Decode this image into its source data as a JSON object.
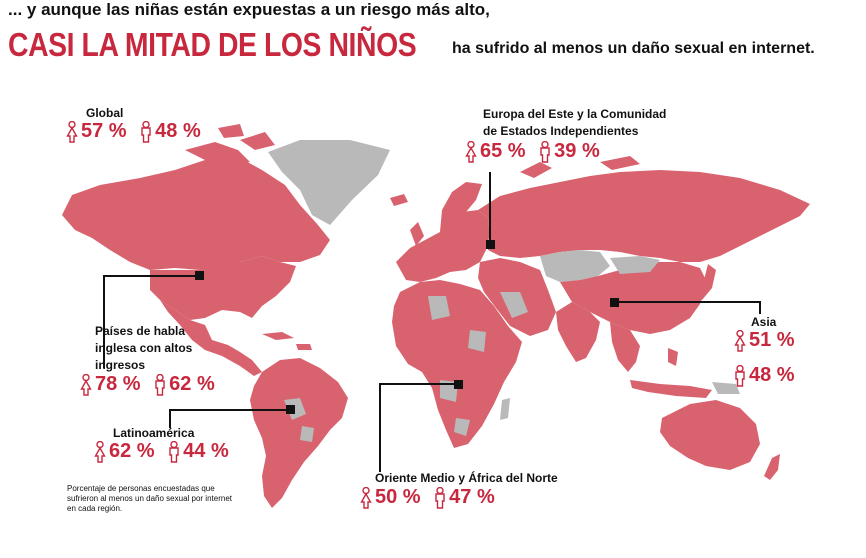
{
  "header": {
    "line1": "... y aunque las niñas están expuestas a un riesgo más alto,",
    "highlight": "CASI LA MITAD DE LOS NIÑOS",
    "rest": "ha sufrido al menos un daño sexual en internet."
  },
  "colors": {
    "accent": "#c8283e",
    "map_fill": "#d9626f",
    "map_gray": "#b9b9b9"
  },
  "chart_data": {
    "type": "map",
    "regions": [
      {
        "name": "Global",
        "girls": "57 %",
        "boys": "48 %"
      },
      {
        "name": "Europa del Este y la Comunidad de Estados Independientes",
        "girls": "65 %",
        "boys": "39 %"
      },
      {
        "name": "Países de habla inglesa con altos ingresos",
        "girls": "78 %",
        "boys": "62 %"
      },
      {
        "name": "Asia",
        "girls": "51 %",
        "boys": "48 %"
      },
      {
        "name": "Latinoamérica",
        "girls": "62 %",
        "boys": "44 %"
      },
      {
        "name": "Oriente Medio y África del Norte",
        "girls": "50 %",
        "boys": "47 %"
      }
    ]
  },
  "labels": {
    "global": "Global",
    "europe_l1": "Europa del Este y la Comunidad",
    "europe_l2": "de Estados Independientes",
    "english_l1": "Países de habla",
    "english_l2": "inglesa con altos",
    "english_l3": "ingresos",
    "asia": "Asia",
    "latam": "Latinoamérica",
    "mena": "Oriente Medio y África del Norte"
  },
  "note": "Porcentaje de personas encuestadas que sufrieron al menos un daño sexual por internet en cada región.",
  "icons": {
    "girl": "girl-icon",
    "boy": "boy-icon"
  }
}
